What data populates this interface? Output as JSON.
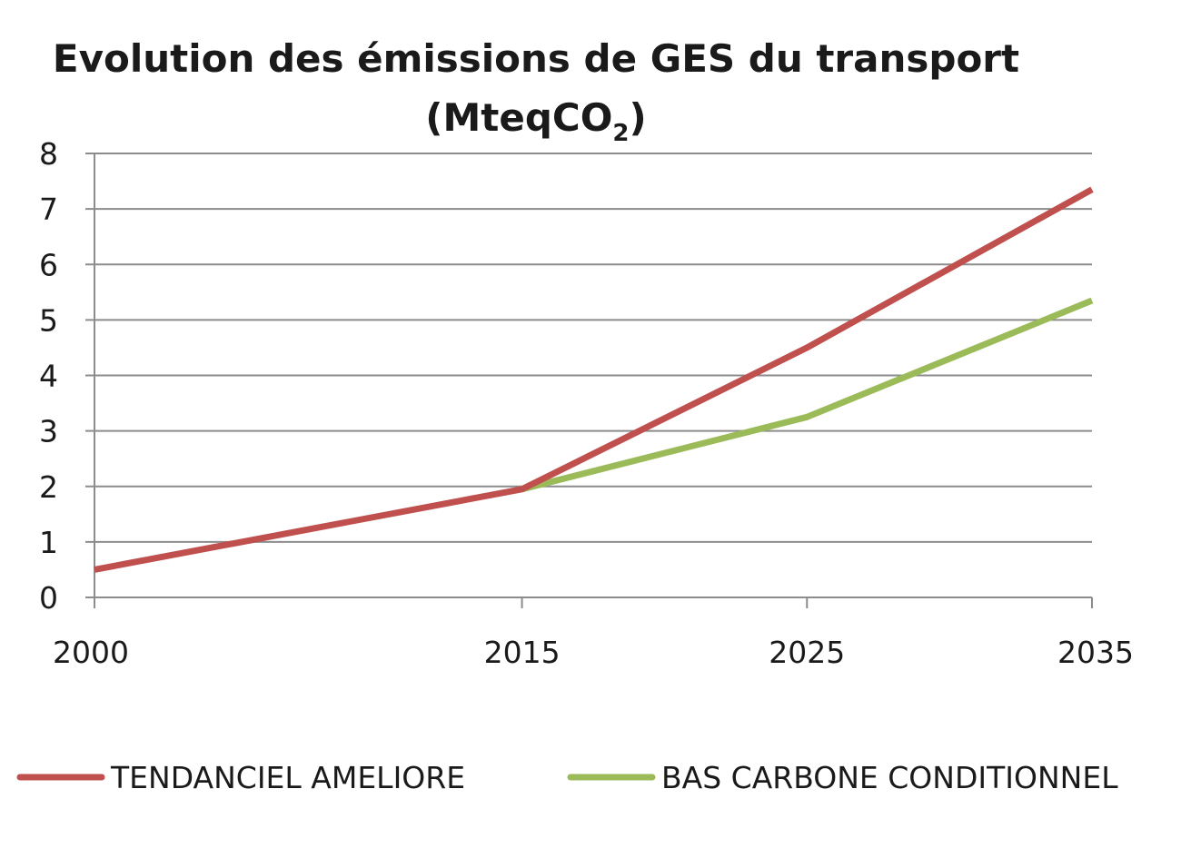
{
  "chart_data": {
    "type": "line",
    "title": {
      "line1": "Evolution des émissions de GES du transport",
      "line2_prefix": "(MteqCO",
      "line2_subscript": "2",
      "line2_suffix": ")"
    },
    "x": [
      2000,
      2015,
      2025,
      2035
    ],
    "x_tick_labels": [
      "2000",
      "2015",
      "2025",
      "2035"
    ],
    "ylim": [
      0,
      8
    ],
    "y_ticks": [
      0,
      1,
      2,
      3,
      4,
      5,
      6,
      7,
      8
    ],
    "grid": true,
    "legend_position": "bottom",
    "series": [
      {
        "name": "TENDANCIEL AMELIORE",
        "color": "#c0504d",
        "values": [
          0.5,
          1.95,
          4.5,
          7.35
        ]
      },
      {
        "name": "BAS CARBONE CONDITIONNEL",
        "color": "#9bbb59",
        "values": [
          null,
          1.95,
          3.25,
          5.35
        ]
      }
    ]
  }
}
